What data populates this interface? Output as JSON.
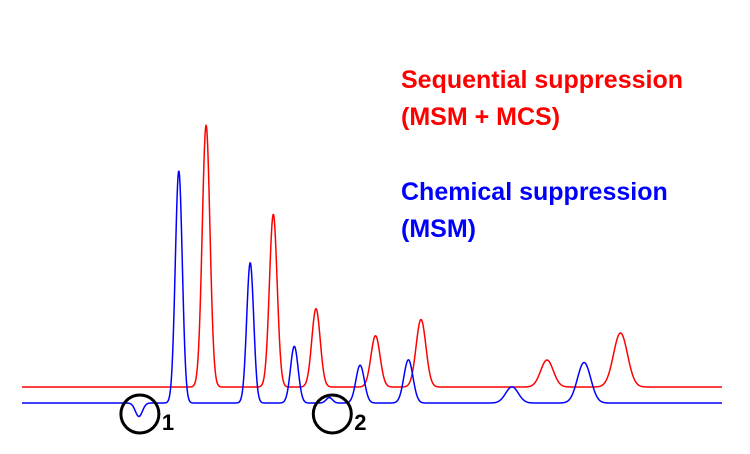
{
  "colors": {
    "sequential": "#ff0000",
    "chemical": "#0000ff",
    "marker": "#000000"
  },
  "legend": {
    "sequential_line1": "Sequential suppression",
    "sequential_line2": "(MSM + MCS)",
    "chemical_line1": "Chemical suppression",
    "chemical_line2": "(MSM)"
  },
  "markers": {
    "label_1": "1",
    "label_2": "2"
  },
  "chart_data": {
    "type": "line",
    "title": "",
    "xlabel": "",
    "ylabel": "",
    "grid": false,
    "axes_visible": false,
    "legend_placement": "top-right",
    "xlim": [
      0,
      100
    ],
    "ylim": [
      -6,
      100
    ],
    "series": [
      {
        "name": "Sequential suppression (MSM + MCS)",
        "color": "#ff0000",
        "peaks": [
          {
            "x": 26.3,
            "height": 97,
            "width": 0.55
          },
          {
            "x": 35.9,
            "height": 64,
            "width": 0.55
          },
          {
            "x": 42.0,
            "height": 29,
            "width": 0.6
          },
          {
            "x": 50.5,
            "height": 19,
            "width": 0.65
          },
          {
            "x": 57.0,
            "height": 25,
            "width": 0.7
          },
          {
            "x": 75.0,
            "height": 10,
            "width": 0.9
          },
          {
            "x": 85.5,
            "height": 20,
            "width": 1.0
          }
        ]
      },
      {
        "name": "Chemical suppression (MSM)",
        "color": "#0000ff",
        "peaks": [
          {
            "x": 16.7,
            "height": -5,
            "width": 0.5
          },
          {
            "x": 22.4,
            "height": 86,
            "width": 0.5
          },
          {
            "x": 32.6,
            "height": 52,
            "width": 0.5
          },
          {
            "x": 38.9,
            "height": 21,
            "width": 0.55
          },
          {
            "x": 43.9,
            "height": 2,
            "width": 0.45
          },
          {
            "x": 48.3,
            "height": 14,
            "width": 0.6
          },
          {
            "x": 55.2,
            "height": 16,
            "width": 0.65
          },
          {
            "x": 70.0,
            "height": 6,
            "width": 0.9
          },
          {
            "x": 80.3,
            "height": 15,
            "width": 0.95
          }
        ]
      }
    ],
    "annotations": [
      {
        "label": "1",
        "x": 16.7
      },
      {
        "label": "2",
        "x": 43.9
      }
    ]
  }
}
